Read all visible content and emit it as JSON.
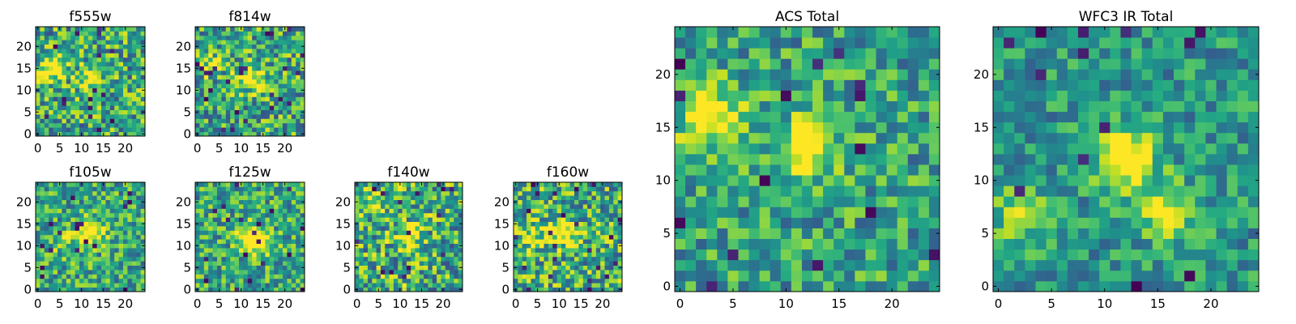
{
  "chart_data": [
    {
      "type": "heatmap",
      "title": "f555w",
      "colormap": "viridis",
      "grid_size": 25,
      "value_range": [
        0,
        1
      ],
      "xticks": [
        0,
        5,
        10,
        15,
        20
      ],
      "yticks": [
        0,
        5,
        10,
        15,
        20
      ],
      "bright_centers": [
        [
          3,
          15,
          0.55
        ],
        [
          12,
          13,
          0.35
        ]
      ],
      "noise_seed": 11,
      "noise_amp": 0.7,
      "base": 0.25
    },
    {
      "type": "heatmap",
      "title": "f814w",
      "colormap": "viridis",
      "grid_size": 25,
      "value_range": [
        0,
        1
      ],
      "xticks": [
        0,
        5,
        10,
        15,
        20
      ],
      "yticks": [
        0,
        5,
        10,
        15,
        20
      ],
      "bright_centers": [
        [
          12,
          13,
          0.55
        ],
        [
          3,
          16,
          0.3
        ]
      ],
      "noise_seed": 23,
      "noise_amp": 0.7,
      "base": 0.25
    },
    {
      "type": "heatmap",
      "title": "f105w",
      "colormap": "viridis",
      "grid_size": 25,
      "value_range": [
        0,
        1
      ],
      "xticks": [
        0,
        5,
        10,
        15,
        20
      ],
      "yticks": [
        0,
        5,
        10,
        15,
        20
      ],
      "bright_centers": [
        [
          12,
          13,
          0.6
        ],
        [
          6,
          11,
          0.25
        ]
      ],
      "noise_seed": 37,
      "noise_amp": 0.6,
      "base": 0.3
    },
    {
      "type": "heatmap",
      "title": "f125w",
      "colormap": "viridis",
      "grid_size": 25,
      "value_range": [
        0,
        1
      ],
      "xticks": [
        0,
        5,
        10,
        15,
        20
      ],
      "yticks": [
        0,
        5,
        10,
        15,
        20
      ],
      "bright_centers": [
        [
          12,
          12,
          0.6
        ],
        [
          15,
          10,
          0.3
        ]
      ],
      "noise_seed": 41,
      "noise_amp": 0.6,
      "base": 0.3
    },
    {
      "type": "heatmap",
      "title": "f140w",
      "colormap": "viridis",
      "grid_size": 25,
      "value_range": [
        0,
        1
      ],
      "xticks": [
        0,
        5,
        10,
        15,
        20
      ],
      "yticks": [
        0,
        5,
        10,
        15,
        20
      ],
      "bright_centers": [
        [
          12,
          12,
          0.45
        ],
        [
          4,
          20,
          0.3
        ]
      ],
      "noise_seed": 53,
      "noise_amp": 0.75,
      "base": 0.25
    },
    {
      "type": "heatmap",
      "title": "f160w",
      "colormap": "viridis",
      "grid_size": 25,
      "value_range": [
        0,
        1
      ],
      "xticks": [
        0,
        5,
        10,
        15,
        20
      ],
      "yticks": [
        0,
        5,
        10,
        15,
        20
      ],
      "bright_centers": [
        [
          11,
          13,
          0.55
        ],
        [
          4,
          12,
          0.3
        ]
      ],
      "noise_seed": 67,
      "noise_amp": 0.7,
      "base": 0.28
    },
    {
      "type": "heatmap",
      "title": "ACS Total",
      "colormap": "viridis",
      "grid_size": 25,
      "value_range": [
        0,
        1
      ],
      "xticks": [
        0,
        5,
        10,
        15,
        20
      ],
      "yticks": [
        0,
        5,
        10,
        15,
        20
      ],
      "bright_centers": [
        [
          3,
          16,
          0.6
        ],
        [
          12,
          13,
          0.55
        ]
      ],
      "noise_seed": 79,
      "noise_amp": 0.55,
      "base": 0.3
    },
    {
      "type": "heatmap",
      "title": "WFC3 IR Total",
      "colormap": "viridis",
      "grid_size": 25,
      "value_range": [
        0,
        1
      ],
      "xticks": [
        0,
        5,
        10,
        15,
        20
      ],
      "yticks": [
        0,
        5,
        10,
        15,
        20
      ],
      "bright_centers": [
        [
          12,
          12,
          0.65
        ],
        [
          16,
          7,
          0.35
        ],
        [
          2,
          7,
          0.3
        ]
      ],
      "noise_seed": 97,
      "noise_amp": 0.45,
      "base": 0.3
    }
  ]
}
